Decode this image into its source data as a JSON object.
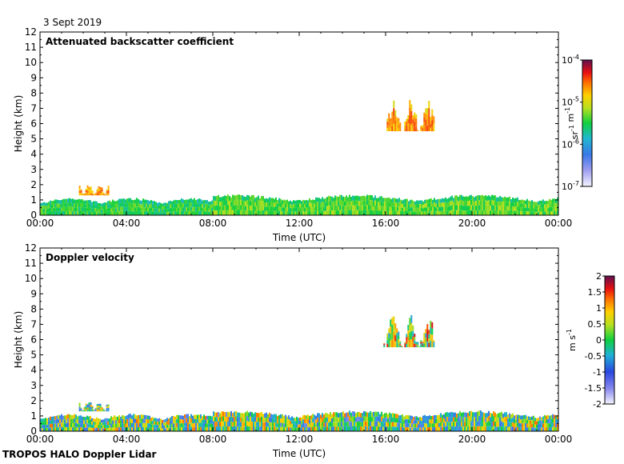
{
  "header": {
    "date": "3 Sept 2019"
  },
  "footer": {
    "instrument": "TROPOS HALO Doppler Lidar"
  },
  "chart_data": [
    {
      "type": "heatmap",
      "title": "Attenuated backscatter coefficient",
      "xlabel": "Time (UTC)",
      "ylabel": "Height (km)",
      "x_ticks": [
        "00:00",
        "04:00",
        "08:00",
        "12:00",
        "16:00",
        "20:00",
        "00:00"
      ],
      "x_range_hours": [
        0,
        24
      ],
      "y_ticks": [
        0,
        1,
        2,
        3,
        4,
        5,
        6,
        7,
        8,
        9,
        10,
        11,
        12
      ],
      "ylim": [
        0,
        12
      ],
      "colorbar": {
        "scale": "log",
        "range": [
          1e-07,
          0.0001
        ],
        "ticks": [
          {
            "base": "10",
            "exp": "-4"
          },
          {
            "base": "10",
            "exp": "-5"
          },
          {
            "base": "10",
            "exp": "-6"
          },
          {
            "base": "10",
            "exp": "-7"
          }
        ],
        "unit_parts": [
          {
            "base": "sr",
            "exp": "-1"
          },
          {
            "base": " m",
            "exp": "-1"
          }
        ]
      },
      "features": [
        {
          "t_start": 0.0,
          "t_end": 8.0,
          "z_base": 0.0,
          "z_top": 1.1,
          "value": 3e-06
        },
        {
          "t_start": 8.0,
          "t_end": 24.0,
          "z_base": 0.0,
          "z_top": 1.3,
          "value": 4e-06
        },
        {
          "t_start": 1.8,
          "t_end": 3.2,
          "z_base": 1.3,
          "z_top": 1.9,
          "value": 2e-05
        },
        {
          "t_start": 15.9,
          "t_end": 18.2,
          "z_base": 5.5,
          "z_top": 7.3,
          "value": 2e-05
        }
      ]
    },
    {
      "type": "heatmap",
      "title": "Doppler velocity",
      "xlabel": "Time (UTC)",
      "ylabel": "Height (km)",
      "x_ticks": [
        "00:00",
        "04:00",
        "08:00",
        "12:00",
        "16:00",
        "20:00",
        "00:00"
      ],
      "x_range_hours": [
        0,
        24
      ],
      "y_ticks": [
        0,
        1,
        2,
        3,
        4,
        5,
        6,
        7,
        8,
        9,
        10,
        11,
        12
      ],
      "ylim": [
        0,
        12
      ],
      "colorbar": {
        "scale": "linear",
        "range": [
          -2,
          2
        ],
        "ticks": [
          "2",
          "1.5",
          "1",
          "0.5",
          "0",
          "-0.5",
          "-1",
          "-1.5",
          "-2"
        ],
        "unit_parts": [
          {
            "base": "m s",
            "exp": "-1"
          }
        ]
      },
      "features": [
        {
          "t_start": 0.0,
          "t_end": 8.0,
          "z_base": 0.0,
          "z_top": 1.1,
          "value": 0.0
        },
        {
          "t_start": 8.0,
          "t_end": 24.0,
          "z_base": 0.0,
          "z_top": 1.3,
          "value": 0.0
        },
        {
          "t_start": 1.8,
          "t_end": 3.2,
          "z_base": 1.3,
          "z_top": 1.9,
          "value": 0.0
        },
        {
          "t_start": 15.9,
          "t_end": 18.2,
          "z_base": 5.5,
          "z_top": 7.3,
          "value": 0.5
        }
      ]
    }
  ]
}
